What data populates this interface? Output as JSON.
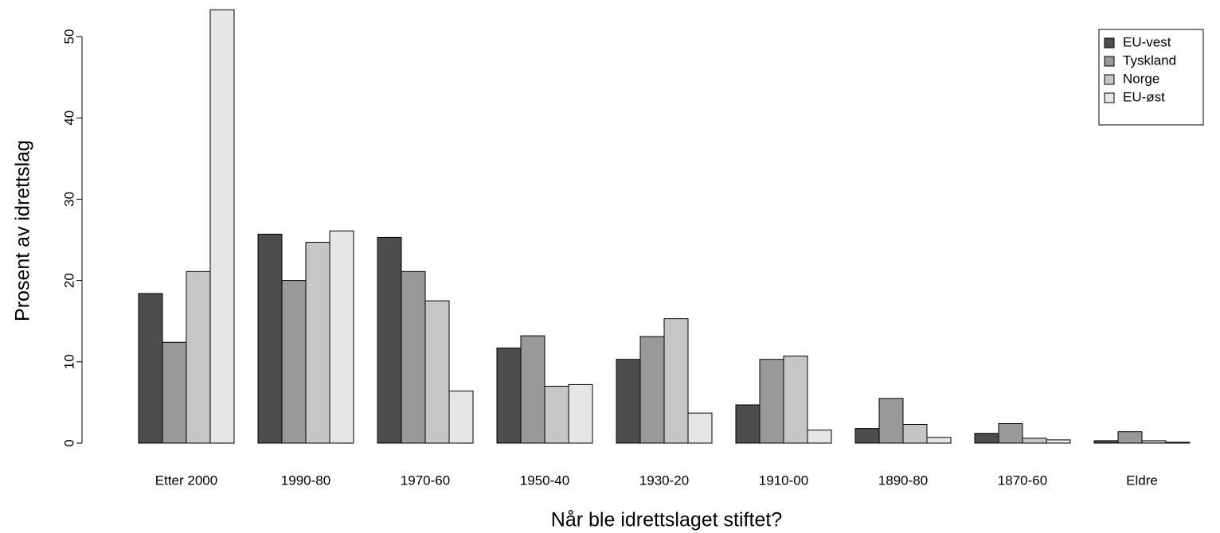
{
  "chart_data": {
    "type": "bar",
    "x_label": "Når ble idrettslaget stiftet?",
    "y_label": "Prosent av idrettslag",
    "categories": [
      "Etter 2000",
      "1990-80",
      "1970-60",
      "1950-40",
      "1930-20",
      "1910-00",
      "1890-80",
      "1870-60",
      "Eldre"
    ],
    "series": [
      {
        "name": "EU-vest",
        "color": "#4d4d4d",
        "values": [
          18.4,
          25.7,
          25.3,
          11.7,
          10.3,
          4.7,
          1.8,
          1.2,
          0.3
        ]
      },
      {
        "name": "Tyskland",
        "color": "#999999",
        "values": [
          12.4,
          20.0,
          21.1,
          13.2,
          13.1,
          10.3,
          5.5,
          2.4,
          1.4
        ]
      },
      {
        "name": "Norge",
        "color": "#c6c6c6",
        "values": [
          21.1,
          24.7,
          17.5,
          7.0,
          15.3,
          10.7,
          2.3,
          0.6,
          0.3
        ]
      },
      {
        "name": "EU-øst",
        "color": "#e6e6e6",
        "values": [
          53.3,
          26.1,
          6.4,
          7.2,
          3.7,
          1.6,
          0.7,
          0.4,
          0.1
        ]
      }
    ],
    "ylim": [
      0,
      54.5
    ],
    "yticks": [
      0,
      10,
      20,
      30,
      40,
      50
    ],
    "grid": false,
    "legend": "topright"
  }
}
